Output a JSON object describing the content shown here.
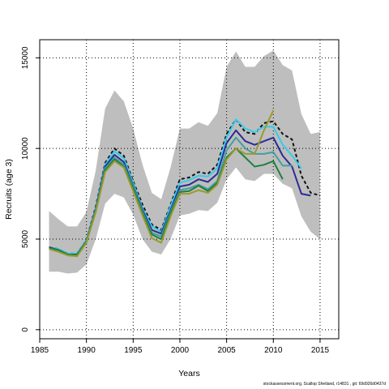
{
  "chart_data": {
    "type": "line",
    "title": "",
    "xlabel": "Years",
    "ylabel": "Recruits (age 3)",
    "xlim": [
      1985,
      2017
    ],
    "ylim": [
      -500,
      16000
    ],
    "x_ticks": [
      1985,
      1990,
      1995,
      2000,
      2005,
      2010,
      2015
    ],
    "y_ticks": [
      0,
      5000,
      10000,
      15000
    ],
    "grid": true,
    "legend": "none",
    "band": {
      "x": [
        1986,
        1987,
        1988,
        1989,
        1990,
        1991,
        1992,
        1993,
        1994,
        1995,
        1996,
        1997,
        1998,
        1999,
        2000,
        2001,
        2002,
        2003,
        2004,
        2005,
        2006,
        2007,
        2008,
        2009,
        2010,
        2011,
        2012,
        2013,
        2014,
        2015
      ],
      "upper": [
        6550,
        6100,
        5700,
        5700,
        6500,
        8800,
        12200,
        13200,
        12600,
        11100,
        9100,
        7550,
        7200,
        8950,
        11100,
        11100,
        11450,
        11250,
        11950,
        14500,
        15350,
        14500,
        14500,
        15100,
        15400,
        14600,
        14300,
        11900,
        10800,
        10900
      ],
      "lower": [
        3200,
        3200,
        3100,
        3150,
        3600,
        5000,
        6950,
        7500,
        7300,
        6350,
        5000,
        4300,
        4150,
        5000,
        6300,
        6400,
        6600,
        6550,
        7000,
        8300,
        8950,
        8300,
        8200,
        8600,
        8600,
        8050,
        7800,
        6250,
        5400,
        5000
      ],
      "color": "#bebebe"
    },
    "series": [
      {
        "color": "#111111",
        "dashed": true,
        "x": [
          1986,
          1987,
          1988,
          1989,
          1990,
          1991,
          1992,
          1993,
          1994,
          1995,
          1996,
          1997,
          1998,
          1999,
          2000,
          2001,
          2002,
          2003,
          2004,
          2005,
          2006,
          2007,
          2008,
          2009,
          2010,
          2011,
          2012,
          2013,
          2014,
          2015
        ],
        "y": [
          4550,
          4450,
          4200,
          4200,
          4950,
          6800,
          9200,
          10000,
          9600,
          8200,
          6900,
          5800,
          5500,
          6900,
          8300,
          8400,
          8700,
          8600,
          9100,
          10800,
          11600,
          10900,
          10800,
          11400,
          11500,
          10800,
          10500,
          8500,
          7550,
          7400
        ]
      },
      {
        "color": "#33ccee",
        "x": [
          1986,
          1987,
          1988,
          1989,
          1990,
          1991,
          1992,
          1993,
          1994,
          1995,
          1996,
          1997,
          1998,
          1999,
          2000,
          2001,
          2002,
          2003,
          2004,
          2005,
          2006,
          2007,
          2008,
          2009,
          2010,
          2011,
          2012,
          2013
        ],
        "y": [
          4550,
          4450,
          4200,
          4200,
          4950,
          6700,
          9100,
          9850,
          9450,
          8100,
          6700,
          5700,
          5400,
          6800,
          8100,
          8250,
          8500,
          8450,
          8900,
          10600,
          11600,
          11100,
          10900,
          11200,
          11200,
          10200,
          9600,
          8900
        ]
      },
      {
        "color": "#2c2c96",
        "x": [
          1986,
          1987,
          1988,
          1989,
          1990,
          1991,
          1992,
          1993,
          1994,
          1995,
          1996,
          1997,
          1998,
          1999,
          2000,
          2001,
          2002,
          2003,
          2004,
          2005,
          2006,
          2007,
          2008,
          2009,
          2010,
          2011,
          2012,
          2013,
          2014
        ],
        "y": [
          4550,
          4400,
          4150,
          4150,
          4900,
          6650,
          9000,
          9650,
          9250,
          7950,
          6600,
          5500,
          5300,
          6600,
          7900,
          8000,
          8300,
          8150,
          8600,
          10300,
          11000,
          10400,
          10200,
          10400,
          10600,
          9600,
          9000,
          7500,
          7400
        ]
      },
      {
        "color": "#44a09a",
        "x": [
          1986,
          1987,
          1988,
          1989,
          1990,
          1991,
          1992,
          1993,
          1994,
          1995,
          1996,
          1997,
          1998,
          1999,
          2000,
          2001,
          2002,
          2003,
          2004,
          2005,
          2006,
          2007,
          2008,
          2009,
          2010,
          2011,
          2012
        ],
        "y": [
          4500,
          4400,
          4150,
          4150,
          4900,
          6600,
          8900,
          9500,
          9100,
          7900,
          6500,
          5350,
          5150,
          6500,
          7700,
          7800,
          8000,
          7750,
          8200,
          9900,
          10600,
          10000,
          9700,
          9700,
          9800,
          9050,
          9050
        ]
      },
      {
        "color": "#1e8040",
        "x": [
          1986,
          1987,
          1988,
          1989,
          1990,
          1991,
          1992,
          1993,
          1994,
          1995,
          1996,
          1997,
          1998,
          1999,
          2000,
          2001,
          2002,
          2003,
          2004,
          2005,
          2006,
          2007,
          2008,
          2009,
          2010,
          2011
        ],
        "y": [
          4500,
          4400,
          4150,
          4150,
          4850,
          6550,
          8800,
          9400,
          9000,
          7800,
          6400,
          5250,
          5000,
          6400,
          7600,
          7650,
          7950,
          7650,
          8100,
          9500,
          10000,
          9500,
          9000,
          9100,
          9300,
          8300
        ]
      },
      {
        "color": "#9a9a2e",
        "x": [
          1986,
          1987,
          1988,
          1989,
          1990,
          1991,
          1992,
          1993,
          1994,
          1995,
          1996,
          1997,
          1998,
          1999,
          2000,
          2001,
          2002,
          2003,
          2004,
          2005,
          2006,
          2007,
          2008,
          2009,
          2010
        ],
        "y": [
          4450,
          4300,
          4100,
          4050,
          4800,
          6500,
          8700,
          9300,
          8950,
          7650,
          6300,
          5050,
          4800,
          6250,
          7500,
          7500,
          7700,
          7550,
          8000,
          9400,
          10000,
          9700,
          9700,
          11000,
          12100
        ]
      }
    ]
  },
  "footer_text": "stockassessment.org, Scallop Shetland, r14831 , git: 69d926d0437d"
}
